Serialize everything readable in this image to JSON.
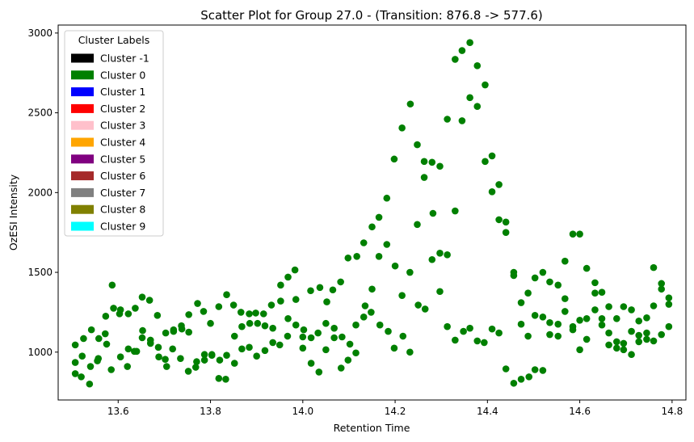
{
  "chart_data": {
    "type": "scatter",
    "title": "Scatter Plot for Group 27.0 -  (Transition: 876.8 -> 577.6)",
    "xlabel": "Retention Time",
    "ylabel": "OzESI Intensity",
    "xlim": [
      13.47,
      14.83
    ],
    "ylim": [
      700,
      3050
    ],
    "xticks": [
      13.6,
      13.8,
      14.0,
      14.2,
      14.4,
      14.6,
      14.8
    ],
    "xtick_labels": [
      "13.6",
      "13.8",
      "14.0",
      "14.2",
      "14.4",
      "14.6",
      "14.8"
    ],
    "yticks": [
      1000,
      1500,
      2000,
      2500,
      3000
    ],
    "ytick_labels": [
      "1000",
      "1500",
      "2000",
      "2500",
      "3000"
    ],
    "grid": false,
    "legend": {
      "title": "Cluster Labels",
      "placement": "top-left",
      "entries": [
        {
          "label": "Cluster -1",
          "color": "#000000"
        },
        {
          "label": "Cluster 0",
          "color": "#008000"
        },
        {
          "label": "Cluster 1",
          "color": "#0000ff"
        },
        {
          "label": "Cluster 2",
          "color": "#ff0000"
        },
        {
          "label": "Cluster 3",
          "color": "#ffc0cb"
        },
        {
          "label": "Cluster 4",
          "color": "#ffa500"
        },
        {
          "label": "Cluster 5",
          "color": "#800080"
        },
        {
          "label": "Cluster 6",
          "color": "#a52a2a"
        },
        {
          "label": "Cluster 7",
          "color": "#808080"
        },
        {
          "label": "Cluster 8",
          "color": "#808000"
        },
        {
          "label": "Cluster 9",
          "color": "#00ffff"
        }
      ]
    },
    "series": [
      {
        "cluster": "Cluster 0",
        "color": "#008000",
        "points": [
          [
            13.507,
            1045
          ],
          [
            13.507,
            935
          ],
          [
            13.507,
            865
          ],
          [
            13.52,
            845
          ],
          [
            13.522,
            975
          ],
          [
            13.525,
            1085
          ],
          [
            13.538,
            800
          ],
          [
            13.54,
            910
          ],
          [
            13.542,
            1140
          ],
          [
            13.555,
            945
          ],
          [
            13.557,
            960
          ],
          [
            13.558,
            1085
          ],
          [
            13.572,
            1115
          ],
          [
            13.573,
            1225
          ],
          [
            13.575,
            1050
          ],
          [
            13.585,
            890
          ],
          [
            13.587,
            1420
          ],
          [
            13.59,
            1275
          ],
          [
            13.605,
            1265
          ],
          [
            13.603,
            1240
          ],
          [
            13.605,
            970
          ],
          [
            13.62,
            910
          ],
          [
            13.622,
            1020
          ],
          [
            13.622,
            1240
          ],
          [
            13.635,
            1005
          ],
          [
            13.637,
            1275
          ],
          [
            13.64,
            1005
          ],
          [
            13.652,
            1345
          ],
          [
            13.652,
            1090
          ],
          [
            13.653,
            1135
          ],
          [
            13.668,
            1325
          ],
          [
            13.67,
            1075
          ],
          [
            13.67,
            1055
          ],
          [
            13.685,
            1230
          ],
          [
            13.687,
            1030
          ],
          [
            13.688,
            970
          ],
          [
            13.702,
            955
          ],
          [
            13.703,
            1120
          ],
          [
            13.705,
            910
          ],
          [
            13.718,
            1020
          ],
          [
            13.72,
            1130
          ],
          [
            13.72,
            1140
          ],
          [
            13.735,
            960
          ],
          [
            13.737,
            1165
          ],
          [
            13.738,
            1145
          ],
          [
            13.752,
            880
          ],
          [
            13.753,
            1235
          ],
          [
            13.753,
            1125
          ],
          [
            13.768,
            905
          ],
          [
            13.77,
            940
          ],
          [
            13.772,
            1305
          ],
          [
            13.785,
            1255
          ],
          [
            13.787,
            950
          ],
          [
            13.787,
            985
          ],
          [
            13.8,
            1180
          ],
          [
            13.803,
            980
          ],
          [
            13.803,
            985
          ],
          [
            13.818,
            1285
          ],
          [
            13.818,
            835
          ],
          [
            13.82,
            950
          ],
          [
            13.833,
            830
          ],
          [
            13.835,
            980
          ],
          [
            13.835,
            1360
          ],
          [
            13.85,
            1295
          ],
          [
            13.852,
            1100
          ],
          [
            13.852,
            930
          ],
          [
            13.866,
            1250
          ],
          [
            13.868,
            1020
          ],
          [
            13.868,
            1160
          ],
          [
            13.884,
            1240
          ],
          [
            13.884,
            1030
          ],
          [
            13.885,
            1180
          ],
          [
            13.898,
            1245
          ],
          [
            13.9,
            975
          ],
          [
            13.902,
            1180
          ],
          [
            13.915,
            1240
          ],
          [
            13.918,
            1010
          ],
          [
            13.918,
            1165
          ],
          [
            13.932,
            1295
          ],
          [
            13.935,
            1060
          ],
          [
            13.935,
            1150
          ],
          [
            13.95,
            1045
          ],
          [
            13.952,
            1420
          ],
          [
            13.952,
            1320
          ],
          [
            13.967,
            1100
          ],
          [
            13.968,
            1470
          ],
          [
            13.968,
            1210
          ],
          [
            13.983,
            1515
          ],
          [
            13.985,
            1170
          ],
          [
            13.985,
            1330
          ],
          [
            14.0,
            1025
          ],
          [
            14.0,
            1095
          ],
          [
            14.002,
            1140
          ],
          [
            14.017,
            1385
          ],
          [
            14.018,
            930
          ],
          [
            14.018,
            1090
          ],
          [
            14.033,
            1120
          ],
          [
            14.035,
            875
          ],
          [
            14.037,
            1405
          ],
          [
            14.05,
            1180
          ],
          [
            14.05,
            1015
          ],
          [
            14.052,
            1315
          ],
          [
            14.065,
            1390
          ],
          [
            14.068,
            1150
          ],
          [
            14.068,
            1090
          ],
          [
            14.082,
            1440
          ],
          [
            14.083,
            900
          ],
          [
            14.085,
            1095
          ],
          [
            14.098,
            1590
          ],
          [
            14.098,
            950
          ],
          [
            14.102,
            1050
          ],
          [
            14.115,
            995
          ],
          [
            14.115,
            1170
          ],
          [
            14.117,
            1600
          ],
          [
            14.132,
            1685
          ],
          [
            14.132,
            1220
          ],
          [
            14.135,
            1290
          ],
          [
            14.148,
            1250
          ],
          [
            14.15,
            1395
          ],
          [
            14.15,
            1785
          ],
          [
            14.165,
            1845
          ],
          [
            14.165,
            1600
          ],
          [
            14.167,
            1170
          ],
          [
            14.182,
            1965
          ],
          [
            14.182,
            1675
          ],
          [
            14.185,
            1130
          ],
          [
            14.198,
            2210
          ],
          [
            14.198,
            1025
          ],
          [
            14.2,
            1540
          ],
          [
            14.215,
            1355
          ],
          [
            14.217,
            1100
          ],
          [
            14.215,
            2405
          ],
          [
            14.232,
            1000
          ],
          [
            14.232,
            1500
          ],
          [
            14.233,
            2555
          ],
          [
            14.248,
            2300
          ],
          [
            14.248,
            1800
          ],
          [
            14.25,
            1295
          ],
          [
            14.263,
            2195
          ],
          [
            14.265,
            1270
          ],
          [
            14.263,
            2095
          ],
          [
            14.28,
            2190
          ],
          [
            14.282,
            1870
          ],
          [
            14.28,
            1580
          ],
          [
            14.297,
            2165
          ],
          [
            14.297,
            1620
          ],
          [
            14.297,
            1380
          ],
          [
            14.313,
            2460
          ],
          [
            14.313,
            1610
          ],
          [
            14.313,
            1160
          ],
          [
            14.33,
            2835
          ],
          [
            14.33,
            1885
          ],
          [
            14.33,
            1075
          ],
          [
            14.345,
            2890
          ],
          [
            14.345,
            2450
          ],
          [
            14.348,
            1130
          ],
          [
            14.362,
            2940
          ],
          [
            14.362,
            2595
          ],
          [
            14.362,
            1150
          ],
          [
            14.378,
            2795
          ],
          [
            14.378,
            2540
          ],
          [
            14.378,
            1070
          ],
          [
            14.395,
            2675
          ],
          [
            14.395,
            2195
          ],
          [
            14.393,
            1060
          ],
          [
            14.41,
            2230
          ],
          [
            14.41,
            2005
          ],
          [
            14.41,
            1145
          ],
          [
            14.425,
            2050
          ],
          [
            14.425,
            1830
          ],
          [
            14.425,
            1120
          ],
          [
            14.44,
            1815
          ],
          [
            14.44,
            1750
          ],
          [
            14.44,
            895
          ],
          [
            14.457,
            1500
          ],
          [
            14.457,
            1480
          ],
          [
            14.457,
            805
          ],
          [
            14.473,
            1310
          ],
          [
            14.473,
            1175
          ],
          [
            14.473,
            830
          ],
          [
            14.488,
            1370
          ],
          [
            14.488,
            1100
          ],
          [
            14.49,
            845
          ],
          [
            14.503,
            1465
          ],
          [
            14.503,
            1230
          ],
          [
            14.503,
            890
          ],
          [
            14.52,
            1500
          ],
          [
            14.52,
            1220
          ],
          [
            14.52,
            885
          ],
          [
            14.535,
            1440
          ],
          [
            14.535,
            1185
          ],
          [
            14.535,
            1110
          ],
          [
            14.553,
            1420
          ],
          [
            14.553,
            1175
          ],
          [
            14.553,
            1100
          ],
          [
            14.568,
            1570
          ],
          [
            14.568,
            1335
          ],
          [
            14.568,
            1255
          ],
          [
            14.585,
            1740
          ],
          [
            14.585,
            1160
          ],
          [
            14.585,
            1140
          ],
          [
            14.6,
            1740
          ],
          [
            14.6,
            1200
          ],
          [
            14.6,
            1015
          ],
          [
            14.615,
            1525
          ],
          [
            14.615,
            1210
          ],
          [
            14.615,
            1080
          ],
          [
            14.633,
            1435
          ],
          [
            14.633,
            1370
          ],
          [
            14.633,
            1265
          ],
          [
            14.648,
            1375
          ],
          [
            14.648,
            1210
          ],
          [
            14.648,
            1170
          ],
          [
            14.663,
            1285
          ],
          [
            14.663,
            1120
          ],
          [
            14.663,
            1045
          ],
          [
            14.68,
            1210
          ],
          [
            14.68,
            1065
          ],
          [
            14.68,
            1025
          ],
          [
            14.695,
            1285
          ],
          [
            14.695,
            1055
          ],
          [
            14.695,
            1015
          ],
          [
            14.712,
            1265
          ],
          [
            14.712,
            1130
          ],
          [
            14.712,
            985
          ],
          [
            14.728,
            1195
          ],
          [
            14.728,
            1105
          ],
          [
            14.728,
            1065
          ],
          [
            14.745,
            1215
          ],
          [
            14.745,
            1120
          ],
          [
            14.745,
            1080
          ],
          [
            14.76,
            1530
          ],
          [
            14.76,
            1290
          ],
          [
            14.76,
            1070
          ],
          [
            14.777,
            1430
          ],
          [
            14.777,
            1395
          ],
          [
            14.777,
            1110
          ],
          [
            14.793,
            1340
          ],
          [
            14.793,
            1300
          ],
          [
            14.793,
            1160
          ]
        ]
      }
    ]
  }
}
